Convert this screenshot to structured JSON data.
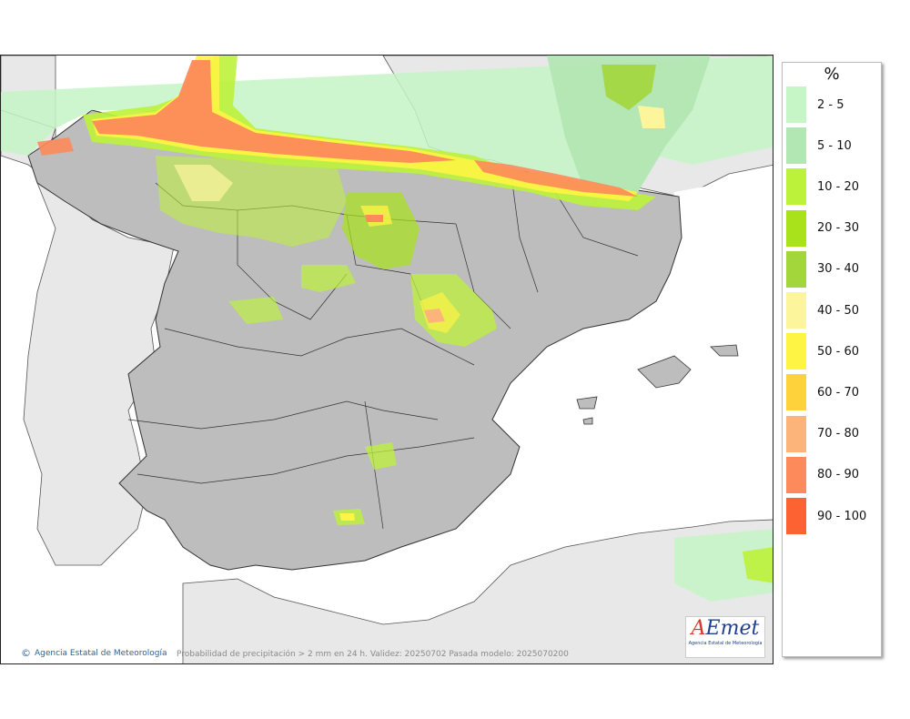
{
  "legend": {
    "unit": "%",
    "items": [
      {
        "label": "2 - 5",
        "color": "#c6f5c6"
      },
      {
        "label": "5 - 10",
        "color": "#b2e6b2"
      },
      {
        "label": "10 - 20",
        "color": "#bdf23a"
      },
      {
        "label": "20 - 30",
        "color": "#a9e21a"
      },
      {
        "label": "30 - 40",
        "color": "#a2d63a"
      },
      {
        "label": "40 - 50",
        "color": "#fdf59c"
      },
      {
        "label": "50 - 60",
        "color": "#fdf444"
      },
      {
        "label": "60 - 70",
        "color": "#fdd23a"
      },
      {
        "label": "70 - 80",
        "color": "#fdb47a"
      },
      {
        "label": "80 - 90",
        "color": "#fd8a5a"
      },
      {
        "label": "90 - 100",
        "color": "#fd6232"
      }
    ]
  },
  "footer": {
    "credit_icon": "copyright-icon",
    "credit_symbol": "©",
    "credit": "Agencia Estatal de Meteorología",
    "caption": "Probabilidad de precipitación > 2 mm en 24 h. Validez: 20250702 Pasada modelo: 2025070200"
  },
  "logo": {
    "text_a": "A",
    "text_rest": "Emet",
    "subtitle": "Agencia Estatal de Meteorología"
  },
  "colors": {
    "sea": "#ffffff",
    "land": "#e8e8e8",
    "relief": "#bdbdbd"
  }
}
